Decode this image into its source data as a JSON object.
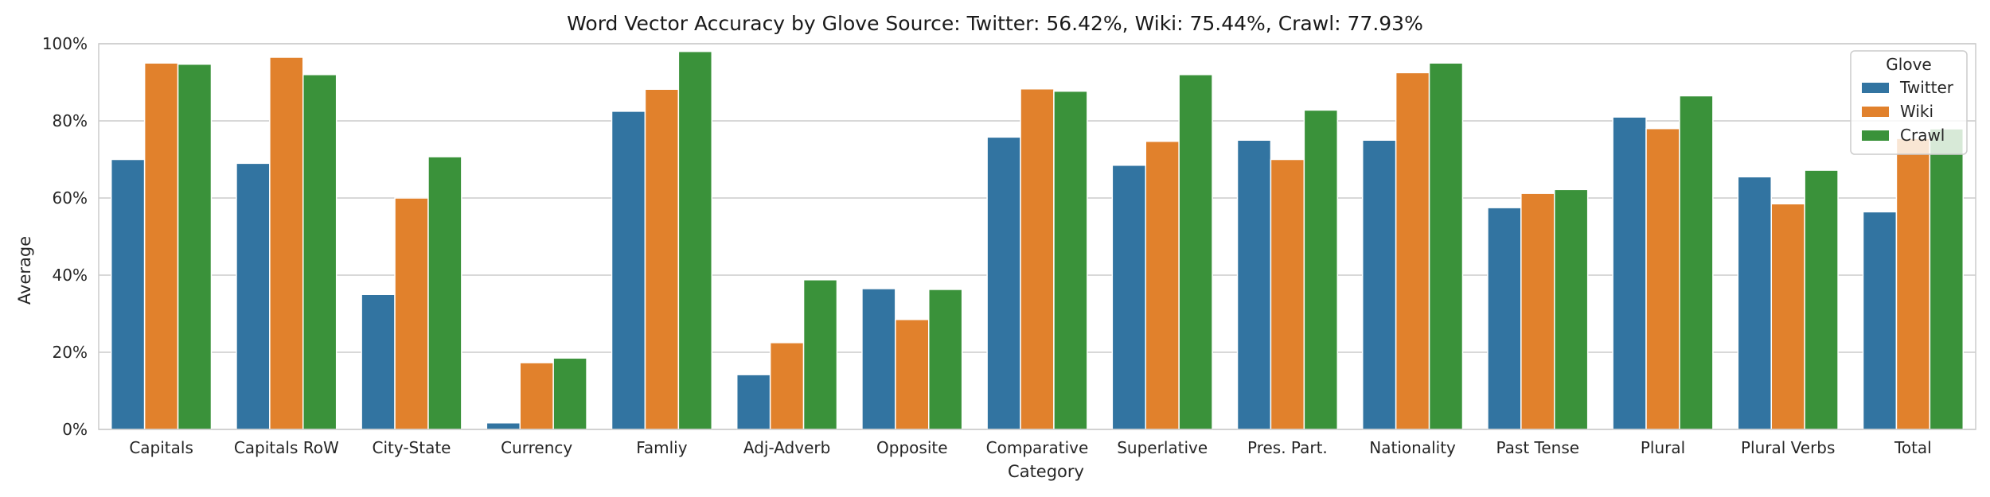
{
  "chart_data": {
    "type": "bar",
    "title": "Word Vector Accuracy by Glove Source: Twitter: 56.42%, Wiki: 75.44%, Crawl: 77.93%",
    "xlabel": "Category",
    "ylabel": "Average",
    "ylim": [
      0,
      100
    ],
    "yticks": [
      "0%",
      "20%",
      "40%",
      "60%",
      "80%",
      "100%"
    ],
    "ytick_values": [
      0,
      20,
      40,
      60,
      80,
      100
    ],
    "grid": true,
    "legend": {
      "title": "Glove",
      "placement": "top-right"
    },
    "categories": [
      "Capitals",
      "Capitals RoW",
      "City-State",
      "Currency",
      "Famliy",
      "Adj-Adverb",
      "Opposite",
      "Comparative",
      "Superlative",
      "Pres. Part.",
      "Nationality",
      "Past Tense",
      "Plural",
      "Plural Verbs",
      "Total"
    ],
    "series": [
      {
        "name": "Twitter",
        "color": "#3274a1",
        "values": [
          70.0,
          69.0,
          35.0,
          1.7,
          82.5,
          14.2,
          36.5,
          75.8,
          68.5,
          75.0,
          75.0,
          57.5,
          81.0,
          65.5,
          56.42
        ]
      },
      {
        "name": "Wiki",
        "color": "#e1812c",
        "values": [
          95.0,
          96.5,
          60.0,
          17.3,
          88.2,
          22.5,
          28.5,
          88.3,
          74.7,
          70.0,
          92.5,
          61.2,
          78.0,
          58.5,
          75.44
        ]
      },
      {
        "name": "Crawl",
        "color": "#3a923a",
        "values": [
          94.7,
          92.0,
          70.7,
          18.5,
          98.0,
          38.8,
          36.3,
          87.7,
          92.0,
          82.8,
          95.0,
          62.2,
          86.5,
          67.2,
          77.93
        ]
      }
    ]
  }
}
